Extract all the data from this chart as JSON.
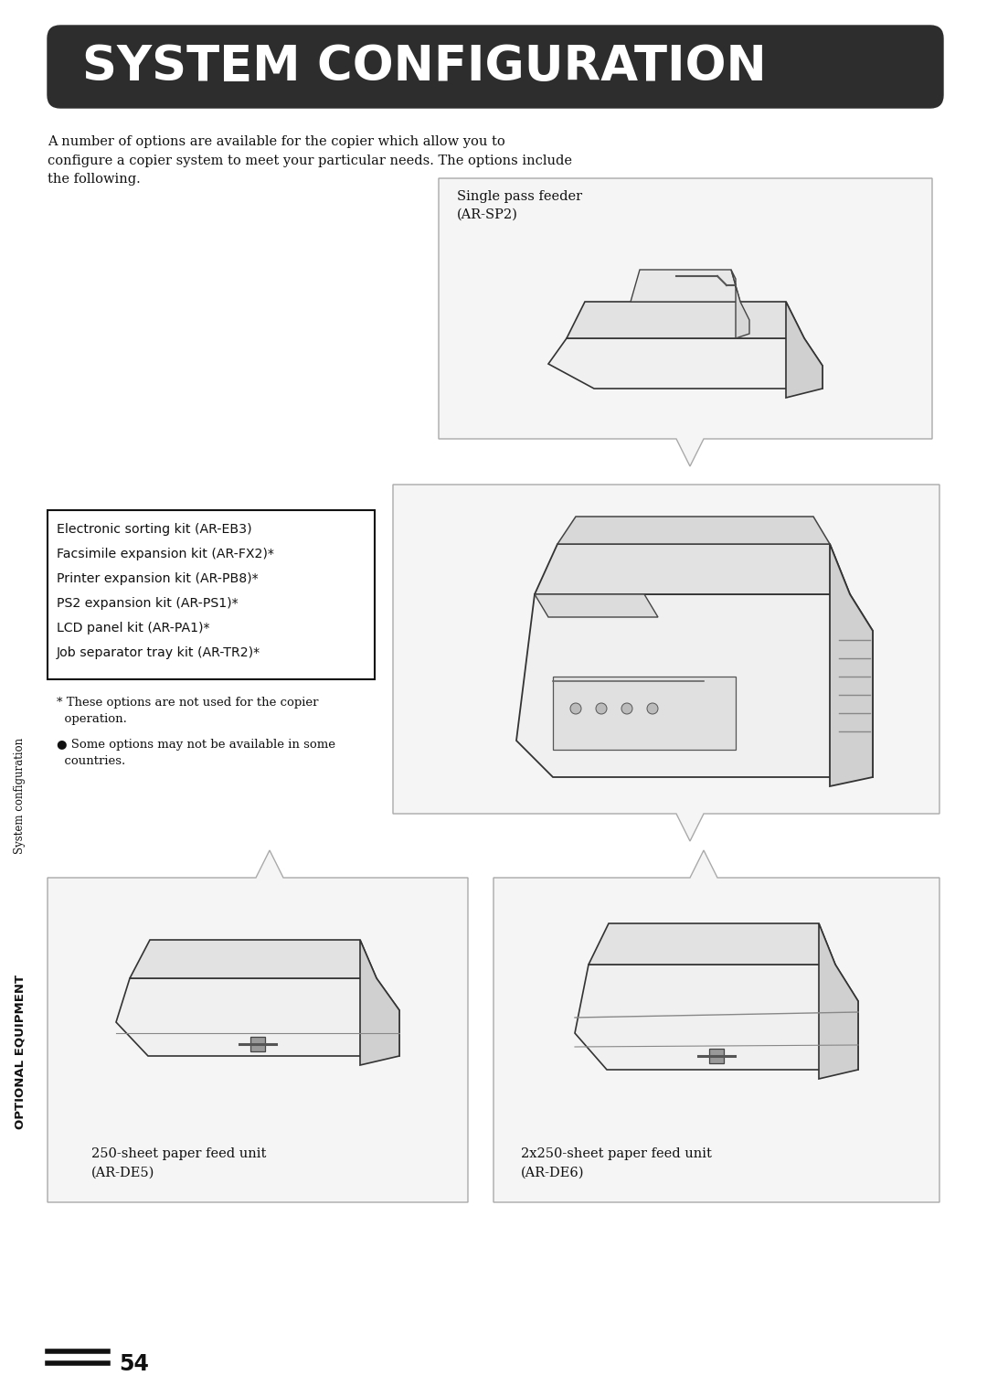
{
  "title": "SYSTEM CONFIGURATION",
  "title_bg_color": "#2d2d2d",
  "title_text_color": "#ffffff",
  "page_bg_color": "#ffffff",
  "body_text": "A number of options are available for the copier which allow you to\nconfigure a copier system to meet your particular needs. The options include\nthe following.",
  "box_items": [
    "Electronic sorting kit (AR-EB3)",
    "Facsimile expansion kit (AR-FX2)*",
    "Printer expansion kit (AR-PB8)*",
    "PS2 expansion kit (AR-PS1)*",
    "LCD panel kit (AR-PA1)*",
    "Job separator tray kit (AR-TR2)*"
  ],
  "footnote1": "* These options are not used for the copier\n  operation.",
  "footnote2": "● Some options may not be available in some\n  countries.",
  "side_label": "System configuration",
  "side_label2": "OPTIONAL EQUIPMENT",
  "label_sp2_line1": "Single pass feeder",
  "label_sp2_line2": "(AR-SP2)",
  "label_de5_line1": "250-sheet paper feed unit",
  "label_de5_line2": "(AR-DE5)",
  "label_de6_line1": "2x250-sheet paper feed unit",
  "label_de6_line2": "(AR-DE6)",
  "page_number": "54"
}
